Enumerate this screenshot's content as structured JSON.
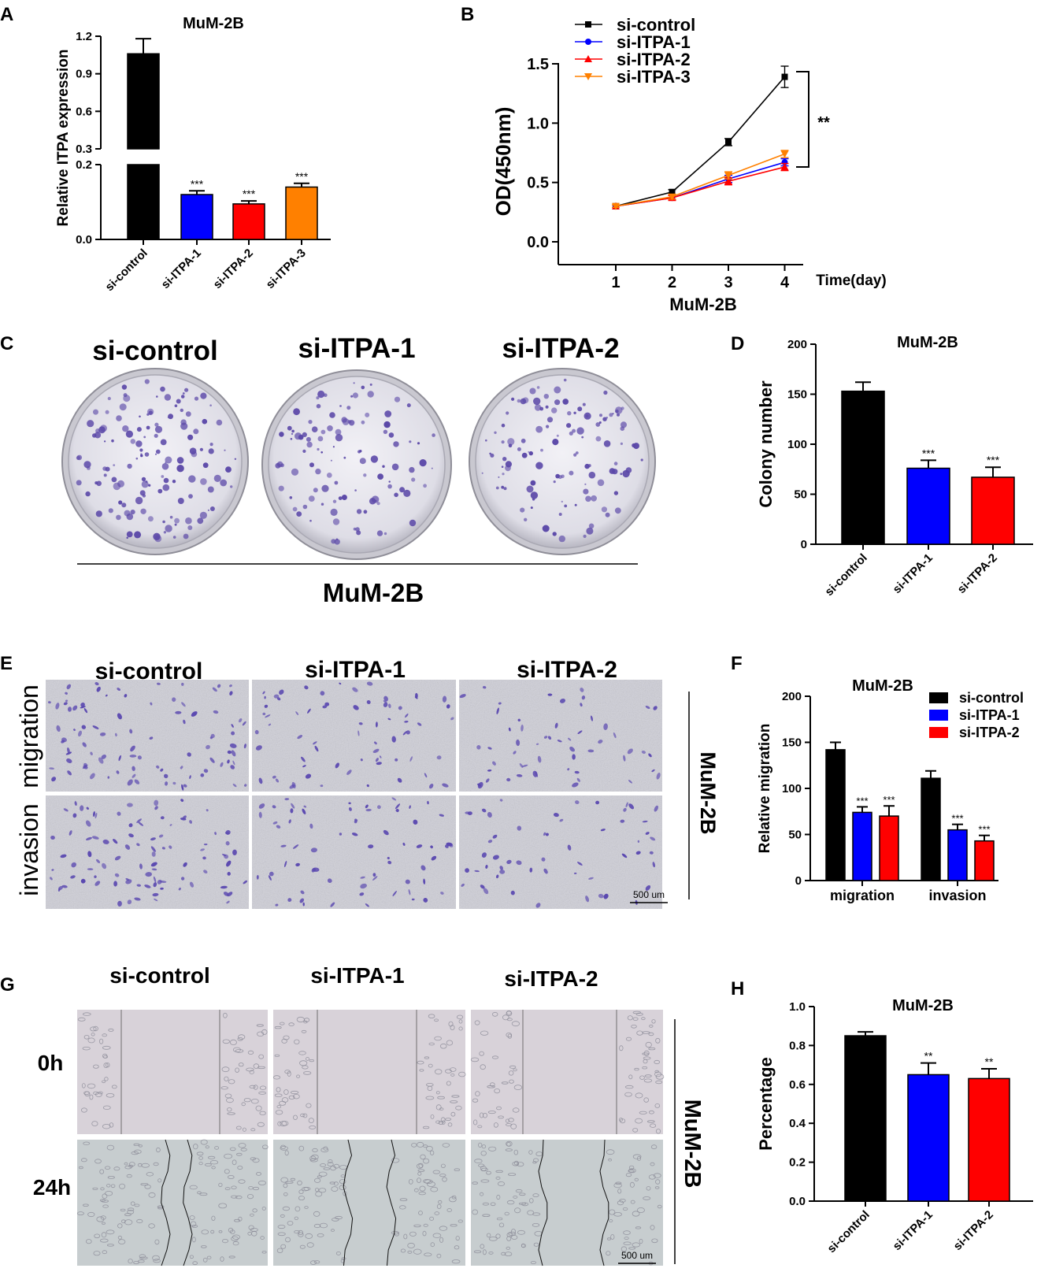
{
  "panel_letters": [
    "A",
    "B",
    "C",
    "D",
    "E",
    "F",
    "G",
    "H"
  ],
  "colors": {
    "si_control": "#000000",
    "si_ITPA_1": "#0000ff",
    "si_ITPA_2": "#ff0000",
    "si_ITPA_3": "#ff8000",
    "stain": "#5b48a8"
  },
  "chart_data": [
    {
      "panel": "A",
      "type": "bar",
      "title": "MuM-2B",
      "xlabel": "",
      "ylabel": "Relative ITPA expression",
      "categories": [
        "si-control",
        "si-ITPA-1",
        "si-ITPA-2",
        "si-ITPA-3"
      ],
      "values": [
        1.06,
        0.12,
        0.095,
        0.14
      ],
      "errors": [
        0.12,
        0.01,
        0.008,
        0.01
      ],
      "significance": [
        "",
        "***",
        "***",
        "***"
      ],
      "colors": [
        "#000000",
        "#0000ff",
        "#ff0000",
        "#ff8000"
      ],
      "axis_break": [
        0.2,
        0.3
      ],
      "yticks_lower": [
        "0.0",
        "0.2"
      ],
      "yticks_upper": [
        "0.3",
        "0.6",
        "0.9",
        "1.2"
      ],
      "ylim": [
        0,
        1.2
      ]
    },
    {
      "panel": "B",
      "type": "line",
      "title": "",
      "xlabel": "MuM-2B",
      "xunit_label": "Time(day)",
      "ylabel": "OD(450nm)",
      "x": [
        1,
        2,
        3,
        4
      ],
      "xticks": [
        "1",
        "2",
        "3",
        "4"
      ],
      "yticks": [
        "0.0",
        "0.5",
        "1.0",
        "1.5"
      ],
      "ylim": [
        0,
        1.5
      ],
      "series": [
        {
          "name": "si-control",
          "color": "#000000",
          "marker": "square",
          "values": [
            0.3,
            0.42,
            0.84,
            1.39
          ],
          "errors": [
            0.01,
            0.02,
            0.03,
            0.09
          ]
        },
        {
          "name": "si-ITPA-1",
          "color": "#0000ff",
          "marker": "circle",
          "values": [
            0.3,
            0.37,
            0.53,
            0.67
          ],
          "errors": [
            0.01,
            0.02,
            0.03,
            0.03
          ]
        },
        {
          "name": "si-ITPA-2",
          "color": "#ff0000",
          "marker": "triangle",
          "values": [
            0.3,
            0.37,
            0.51,
            0.63
          ],
          "errors": [
            0.01,
            0.02,
            0.03,
            0.03
          ]
        },
        {
          "name": "si-ITPA-3",
          "color": "#ff8000",
          "marker": "triangle-down",
          "values": [
            0.3,
            0.38,
            0.56,
            0.74
          ],
          "errors": [
            0.01,
            0.02,
            0.03,
            0.03
          ]
        }
      ],
      "significance": "**",
      "legend_position": "top-left"
    },
    {
      "panel": "D",
      "type": "bar",
      "title": "MuM-2B",
      "xlabel": "",
      "ylabel": "Colony number",
      "categories": [
        "si-control",
        "si-ITPA-1",
        "si-ITPA-2"
      ],
      "values": [
        153,
        76,
        67
      ],
      "errors": [
        9,
        8,
        10
      ],
      "significance": [
        "",
        "***",
        "***"
      ],
      "colors": [
        "#000000",
        "#0000ff",
        "#ff0000"
      ],
      "yticks": [
        "0",
        "50",
        "100",
        "150",
        "200"
      ],
      "ylim": [
        0,
        200
      ]
    },
    {
      "panel": "F",
      "type": "bar",
      "title": "MuM-2B",
      "xlabel": "",
      "ylabel": "Relative migration",
      "categories": [
        "migration",
        "invasion"
      ],
      "series": [
        {
          "name": "si-control",
          "color": "#000000",
          "values": [
            142,
            111
          ],
          "errors": [
            8,
            8
          ],
          "significance": [
            "",
            ""
          ]
        },
        {
          "name": "si-ITPA-1",
          "color": "#0000ff",
          "values": [
            74,
            55
          ],
          "errors": [
            6,
            6
          ],
          "significance": [
            "***",
            "***"
          ]
        },
        {
          "name": "si-ITPA-2",
          "color": "#ff0000",
          "values": [
            70,
            43
          ],
          "errors": [
            11,
            6
          ],
          "significance": [
            "***",
            "***"
          ]
        }
      ],
      "yticks": [
        "0",
        "50",
        "100",
        "150",
        "200"
      ],
      "ylim": [
        0,
        200
      ],
      "legend_position": "top-right"
    },
    {
      "panel": "H",
      "type": "bar",
      "title": "MuM-2B",
      "xlabel": "",
      "ylabel": "Percentage",
      "categories": [
        "si-control",
        "si-ITPA-1",
        "si-ITPA-2"
      ],
      "values": [
        0.85,
        0.65,
        0.63
      ],
      "errors": [
        0.02,
        0.06,
        0.05
      ],
      "significance": [
        "",
        "**",
        "**"
      ],
      "colors": [
        "#000000",
        "#0000ff",
        "#ff0000"
      ],
      "yticks": [
        "0.0",
        "0.2",
        "0.4",
        "0.6",
        "0.8",
        "1.0"
      ],
      "ylim": [
        0,
        1.0
      ]
    }
  ],
  "panel_C": {
    "labels": [
      "si-control",
      "si-ITPA-1",
      "si-ITPA-2"
    ],
    "footer": "MuM-2B"
  },
  "panel_E": {
    "columns": [
      "si-control",
      "si-ITPA-1",
      "si-ITPA-2"
    ],
    "rows": [
      "migration",
      "invasion"
    ],
    "side_label": "MuM-2B",
    "scale_bar": "500 um"
  },
  "panel_G": {
    "columns": [
      "si-control",
      "si-ITPA-1",
      "si-ITPA-2"
    ],
    "rows": [
      "0h",
      "24h"
    ],
    "side_label": "MuM-2B",
    "scale_bar": "500 um"
  }
}
